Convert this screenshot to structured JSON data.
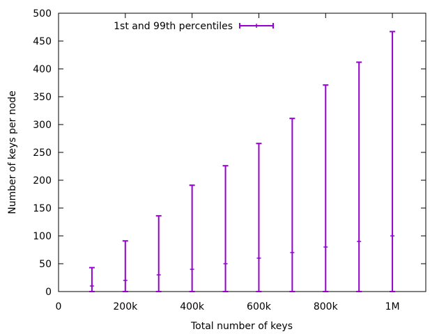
{
  "chart_data": {
    "type": "scatter",
    "title": "",
    "xlabel": "Total number of keys",
    "ylabel": "Number of keys per node",
    "xlim": [
      0,
      1100000
    ],
    "ylim": [
      0,
      500
    ],
    "x_ticks": [
      {
        "value": 0,
        "label": "0"
      },
      {
        "value": 200000,
        "label": "200k"
      },
      {
        "value": 400000,
        "label": "400k"
      },
      {
        "value": 600000,
        "label": "600k"
      },
      {
        "value": 800000,
        "label": "800k"
      },
      {
        "value": 1000000,
        "label": "1M"
      }
    ],
    "y_ticks": [
      0,
      50,
      100,
      150,
      200,
      250,
      300,
      350,
      400,
      450,
      500
    ],
    "grid": false,
    "legend_position": "top-left",
    "series": [
      {
        "name": "1st and 99th percentiles",
        "color": "#9400d3",
        "style": "errorbar",
        "points": [
          {
            "x": 100000,
            "y": 10,
            "low": 0,
            "high": 43
          },
          {
            "x": 200000,
            "y": 20,
            "low": 0,
            "high": 91
          },
          {
            "x": 300000,
            "y": 30,
            "low": 0,
            "high": 136
          },
          {
            "x": 400000,
            "y": 40,
            "low": 0,
            "high": 191
          },
          {
            "x": 500000,
            "y": 50,
            "low": 0,
            "high": 226
          },
          {
            "x": 600000,
            "y": 60,
            "low": 0,
            "high": 266
          },
          {
            "x": 700000,
            "y": 70,
            "low": 0,
            "high": 311
          },
          {
            "x": 800000,
            "y": 80,
            "low": 0,
            "high": 371
          },
          {
            "x": 900000,
            "y": 90,
            "low": 0,
            "high": 412
          },
          {
            "x": 1000000,
            "y": 100,
            "low": 0,
            "high": 467
          }
        ]
      }
    ]
  }
}
